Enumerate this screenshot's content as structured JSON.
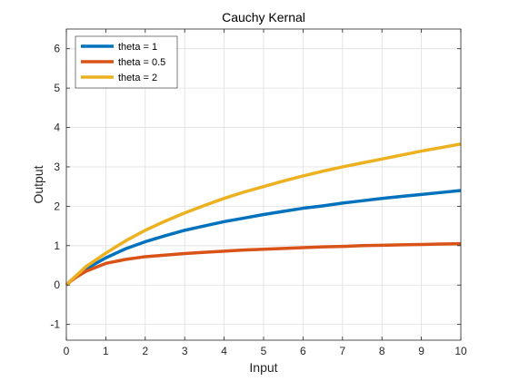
{
  "chart_data": {
    "type": "line",
    "title": "Cauchy Kernal",
    "xlabel": "Input",
    "ylabel": "Output",
    "xlim": [
      0,
      10
    ],
    "ylim": [
      -1.4,
      6.5
    ],
    "xticks": [
      0,
      1,
      2,
      3,
      4,
      5,
      6,
      7,
      8,
      9,
      10
    ],
    "yticks": [
      -1,
      0,
      1,
      2,
      3,
      4,
      5,
      6
    ],
    "grid": true,
    "legend_position": "top-left",
    "x": [
      0,
      0.1,
      0.25,
      0.5,
      1,
      1.5,
      2,
      2.5,
      3,
      3.5,
      4,
      4.5,
      5,
      5.5,
      6,
      6.5,
      7,
      7.5,
      8,
      8.5,
      9,
      9.5,
      10
    ],
    "series": [
      {
        "name": "theta = 1",
        "color": "#0072BD",
        "values": [
          0,
          0.1,
          0.22,
          0.41,
          0.69,
          0.92,
          1.1,
          1.25,
          1.39,
          1.5,
          1.61,
          1.7,
          1.79,
          1.87,
          1.95,
          2.01,
          2.08,
          2.14,
          2.2,
          2.25,
          2.3,
          2.35,
          2.4
        ]
      },
      {
        "name": "theta = 0.5",
        "color": "#D95319",
        "values": [
          0,
          0.09,
          0.2,
          0.35,
          0.55,
          0.65,
          0.72,
          0.76,
          0.8,
          0.83,
          0.86,
          0.89,
          0.91,
          0.93,
          0.95,
          0.97,
          0.98,
          1.0,
          1.01,
          1.02,
          1.03,
          1.04,
          1.05
        ]
      },
      {
        "name": "theta = 2",
        "color": "#EDB120",
        "values": [
          0,
          0.1,
          0.24,
          0.47,
          0.81,
          1.12,
          1.39,
          1.62,
          1.83,
          2.02,
          2.2,
          2.36,
          2.5,
          2.64,
          2.77,
          2.89,
          3.0,
          3.1,
          3.2,
          3.3,
          3.4,
          3.49,
          3.58
        ]
      }
    ]
  }
}
